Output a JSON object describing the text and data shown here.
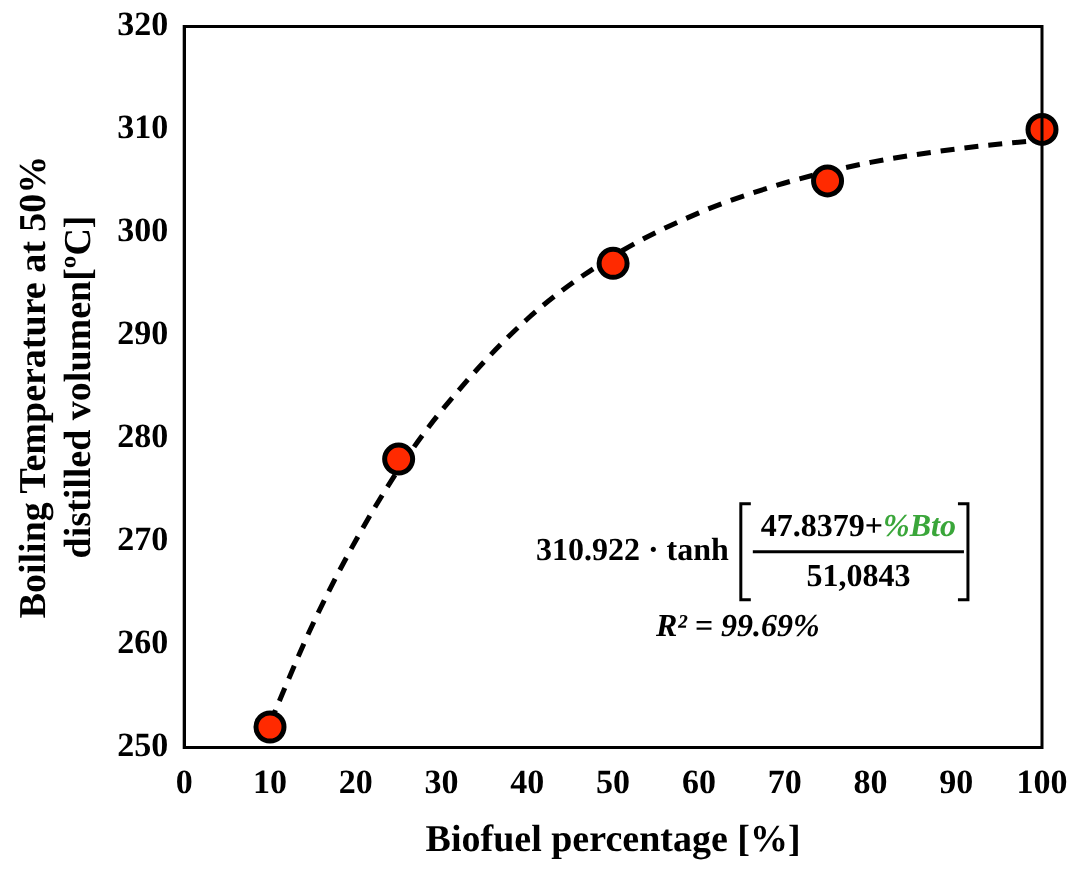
{
  "chart_data": {
    "type": "scatter",
    "xlabel": "Biofuel percentage [%]",
    "ylabel": "Boiling Temperature at 50% distilled volumen[ºC]",
    "xlim": [
      0,
      100
    ],
    "xticks": [
      0,
      10,
      20,
      30,
      40,
      50,
      60,
      70,
      80,
      90,
      100
    ],
    "ylim": [
      250,
      320
    ],
    "yticks": [
      250,
      260,
      270,
      280,
      290,
      300,
      310,
      320
    ],
    "grid": false,
    "legend": false,
    "marker": "circle",
    "series": [
      {
        "type": "line",
        "color": "#000000",
        "line_style": "dashed",
        "marker": "none",
        "x": [
          10,
          15,
          20,
          25,
          30,
          40,
          50,
          60,
          70,
          80,
          90,
          100
        ],
        "values": [
          252.4,
          262.0,
          270.1,
          277.0,
          282.7,
          291.6,
          297.7,
          301.9,
          304.8,
          306.8,
          308.1,
          309.0
        ]
      },
      {
        "color": "#ff2a00",
        "x": [
          10,
          25,
          50,
          75,
          100
        ],
        "values": [
          252,
          278,
          297,
          305,
          310
        ]
      }
    ],
    "annotations": [
      "310.922 · tanh",
      "47.8379+",
      "%Bto",
      "51,0843",
      "R² = 99.69%"
    ]
  }
}
